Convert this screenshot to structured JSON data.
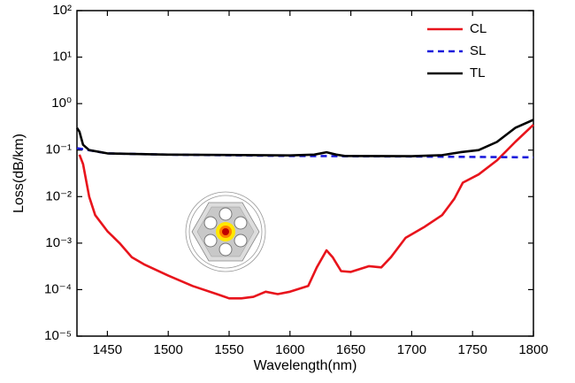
{
  "chart_data": {
    "type": "line",
    "x_label": "Wavelength(nm)",
    "y_label": "Loss(dB/km)",
    "xlim": [
      1425,
      1800
    ],
    "xticks": [
      1450,
      1500,
      1550,
      1600,
      1650,
      1700,
      1750,
      1800
    ],
    "ylim": [
      1e-05,
      100
    ],
    "yscale": "log",
    "yticks": [
      {
        "value": 1e-05,
        "label": "10⁻⁵"
      },
      {
        "value": 0.0001,
        "label": "10⁻⁴"
      },
      {
        "value": 0.001,
        "label": "10⁻³"
      },
      {
        "value": 0.01,
        "label": "10⁻²"
      },
      {
        "value": 0.1,
        "label": "10⁻¹"
      },
      {
        "value": 1,
        "label": "10⁰"
      },
      {
        "value": 10,
        "label": "10¹"
      },
      {
        "value": 100,
        "label": "10²"
      }
    ],
    "legend_position": "upper right",
    "series": [
      {
        "name": "CL",
        "color": "#e8141c",
        "dash": "solid",
        "x": [
          1427,
          1430,
          1435,
          1440,
          1450,
          1460,
          1470,
          1480,
          1500,
          1520,
          1540,
          1550,
          1560,
          1570,
          1580,
          1590,
          1600,
          1615,
          1622,
          1630,
          1635,
          1642,
          1650,
          1665,
          1675,
          1683,
          1695,
          1710,
          1725,
          1735,
          1742,
          1755,
          1770,
          1785,
          1800
        ],
        "values": [
          0.08,
          0.05,
          0.01,
          0.004,
          0.0018,
          0.001,
          0.0005,
          0.00035,
          0.0002,
          0.00012,
          8e-05,
          6.5e-05,
          6.5e-05,
          7e-05,
          9e-05,
          8e-05,
          9e-05,
          0.00012,
          0.0003,
          0.0007,
          0.0005,
          0.00025,
          0.00024,
          0.00032,
          0.0003,
          0.0005,
          0.0013,
          0.0022,
          0.004,
          0.009,
          0.02,
          0.03,
          0.06,
          0.15,
          0.35
        ]
      },
      {
        "name": "SL",
        "color": "#1a1adc",
        "dash": "dashed",
        "x": [
          1425,
          1450,
          1500,
          1600,
          1700,
          1800
        ],
        "values": [
          0.11,
          0.085,
          0.08,
          0.075,
          0.073,
          0.07
        ]
      },
      {
        "name": "TL",
        "color": "#000000",
        "dash": "solid",
        "x": [
          1425,
          1427,
          1430,
          1435,
          1450,
          1500,
          1600,
          1620,
          1630,
          1638,
          1645,
          1700,
          1725,
          1740,
          1755,
          1770,
          1785,
          1800
        ],
        "values": [
          0.3,
          0.25,
          0.13,
          0.1,
          0.085,
          0.08,
          0.077,
          0.08,
          0.09,
          0.08,
          0.075,
          0.074,
          0.078,
          0.09,
          0.1,
          0.15,
          0.3,
          0.45
        ]
      }
    ]
  }
}
